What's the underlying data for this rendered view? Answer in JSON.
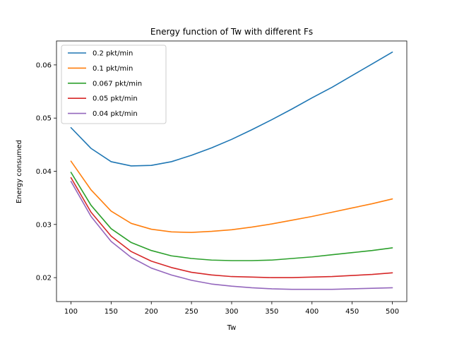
{
  "chart_data": {
    "type": "line",
    "title": "Energy function of Tw with different Fs",
    "xlabel": "Tw",
    "ylabel": "Energy consumed",
    "xlim": [
      82,
      518
    ],
    "ylim": [
      0.0155,
      0.0645
    ],
    "xticks": [
      100,
      150,
      200,
      250,
      300,
      350,
      400,
      450,
      500
    ],
    "yticks": [
      0.02,
      0.03,
      0.04,
      0.05,
      0.06
    ],
    "legend_position": "top-left",
    "grid": false,
    "x": [
      100,
      125,
      150,
      175,
      200,
      225,
      250,
      275,
      300,
      325,
      350,
      375,
      400,
      425,
      450,
      475,
      500
    ],
    "series": [
      {
        "name": "0.2 pkt/min",
        "color": "#1f77b4",
        "values": [
          0.0482,
          0.0443,
          0.0418,
          0.041,
          0.0411,
          0.0418,
          0.043,
          0.0444,
          0.046,
          0.0478,
          0.0497,
          0.0517,
          0.0538,
          0.0558,
          0.058,
          0.0602,
          0.0624
        ]
      },
      {
        "name": "0.1 pkt/min",
        "color": "#ff7f0e",
        "values": [
          0.0419,
          0.0365,
          0.0325,
          0.0302,
          0.0291,
          0.0286,
          0.0285,
          0.0287,
          0.029,
          0.0295,
          0.0301,
          0.0308,
          0.0315,
          0.0323,
          0.0331,
          0.0339,
          0.0348
        ]
      },
      {
        "name": "0.067 pkt/min",
        "color": "#2ca02c",
        "values": [
          0.0398,
          0.0336,
          0.0292,
          0.0266,
          0.0251,
          0.0241,
          0.0236,
          0.0233,
          0.0232,
          0.0232,
          0.0233,
          0.0236,
          0.0239,
          0.0243,
          0.0247,
          0.0251,
          0.0256
        ]
      },
      {
        "name": "0.05 pkt/min",
        "color": "#d62728",
        "values": [
          0.0388,
          0.0323,
          0.0278,
          0.0249,
          0.0231,
          0.0219,
          0.021,
          0.0205,
          0.0202,
          0.0201,
          0.02,
          0.02,
          0.0201,
          0.0202,
          0.0204,
          0.0206,
          0.0209
        ]
      },
      {
        "name": "0.04 pkt/min",
        "color": "#9467bd",
        "values": [
          0.0381,
          0.0315,
          0.0268,
          0.0238,
          0.0218,
          0.0205,
          0.0195,
          0.0188,
          0.0184,
          0.0181,
          0.0179,
          0.0178,
          0.0178,
          0.0178,
          0.0179,
          0.018,
          0.0181
        ]
      }
    ]
  }
}
